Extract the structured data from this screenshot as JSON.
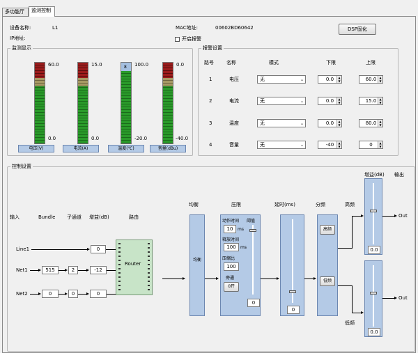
{
  "tabs": [
    {
      "label": "多功能厅"
    },
    {
      "label": "监测控制"
    }
  ],
  "device": {
    "name_label": "设备名称:",
    "name_value": "L1",
    "ip_label": "IP地址:",
    "mac_label": "MAC地址:",
    "mac_value": "00602BD60642",
    "dsp_button": "DSP固化",
    "alarm_checkbox": "开启报警"
  },
  "monitor": {
    "title": "监测显示",
    "meters": [
      {
        "label": "电压(V)",
        "top": "60.0",
        "bottom": "0.0",
        "level": 0
      },
      {
        "label": "电流(A)",
        "top": "15.0",
        "bottom": "0.0",
        "level": 0
      },
      {
        "label": "温度(℃)",
        "top": "100.0",
        "bottom": "-20.0",
        "level": 0.1,
        "marker": "8"
      },
      {
        "label": "音量(dBu)",
        "top": "0.0",
        "bottom": "-40.0",
        "level": 0
      }
    ]
  },
  "alarm": {
    "title": "报警设置",
    "headers": [
      "路号",
      "名称",
      "模式",
      "下限",
      "上限"
    ],
    "rows": [
      {
        "no": "1",
        "name": "电压",
        "mode": "无",
        "low": "0.0",
        "high": "60.0"
      },
      {
        "no": "2",
        "name": "电流",
        "mode": "无",
        "low": "0.0",
        "high": "15.0"
      },
      {
        "no": "3",
        "name": "温度",
        "mode": "无",
        "low": "0.0",
        "high": "80.0"
      },
      {
        "no": "4",
        "name": "音量",
        "mode": "无",
        "low": "-40",
        "high": "0"
      }
    ]
  },
  "control": {
    "title": "控制设置",
    "headers": {
      "input": "输入",
      "bundle": "Bundle",
      "subchannel": "子通道",
      "gain": "增益(dB)",
      "route": "路由",
      "eq": "均衡",
      "comp": "压限",
      "delay": "延时(ms)",
      "xover": "分频",
      "high": "高频",
      "low": "低频",
      "output_gain": "增益(dB)",
      "output": "输出"
    },
    "inputs": [
      {
        "name": "Line1",
        "bundle": "",
        "sub": "",
        "gain": "0"
      },
      {
        "name": "Net1",
        "bundle": "515",
        "sub": "2",
        "gain": "-12"
      },
      {
        "name": "Net2",
        "bundle": "0",
        "sub": "0",
        "gain": "0"
      }
    ],
    "router_label": "Router",
    "eq_label": "均衡",
    "comp": {
      "attack_label": "动作时间",
      "attack_value": "10",
      "attack_unit": "ms",
      "threshold_label": "阈值",
      "release_label": "释放时间",
      "release_value": "100",
      "release_unit": "ms",
      "ratio_label": "压缩比",
      "ratio_value": "100",
      "bypass_label": "旁通",
      "bypass_button": "0开",
      "threshold_value": "0"
    },
    "delay_value": "0",
    "xover": {
      "high_button": "高频",
      "low_button": "低频"
    },
    "out_high": {
      "gain": "0.0",
      "label": "Out"
    },
    "out_low": {
      "gain": "0.0",
      "label": "Out"
    }
  }
}
